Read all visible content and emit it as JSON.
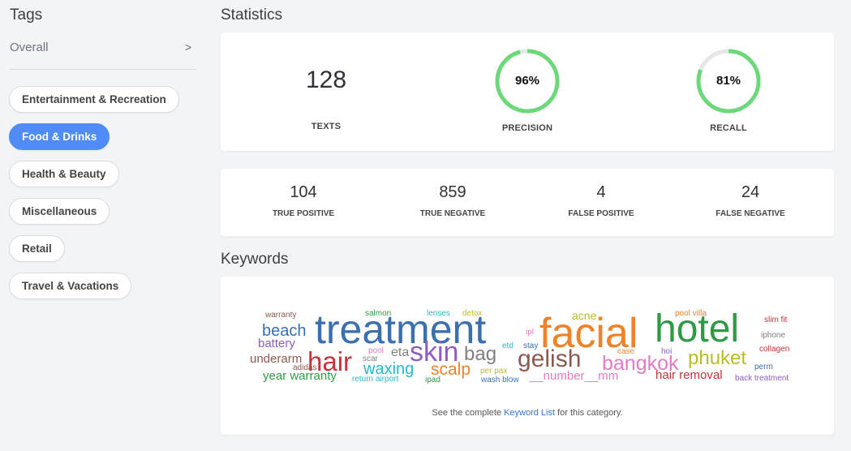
{
  "sidebar": {
    "title": "Tags",
    "overall": "Overall",
    "overall_chevron": ">",
    "tags": [
      "Entertainment & Recreation",
      "Food & Drinks",
      "Health & Beauty",
      "Miscellaneous",
      "Retail",
      "Travel & Vacations"
    ],
    "active_tag": "Food & Drinks",
    "accent_color": "#4f8cf7"
  },
  "statistics": {
    "title": "Statistics",
    "texts": {
      "value": "128",
      "label": "TEXTS"
    },
    "precision": {
      "value": "96%",
      "label": "PRECISION",
      "fraction": 0.96,
      "color": "#6bd87a"
    },
    "recall": {
      "value": "81%",
      "label": "RECALL",
      "fraction": 0.81,
      "color": "#6bd87a"
    }
  },
  "confusion": {
    "true_positive": {
      "value": "104",
      "label": "TRUE POSITIVE"
    },
    "true_negative": {
      "value": "859",
      "label": "TRUE NEGATIVE"
    },
    "false_positive": {
      "value": "4",
      "label": "FALSE POSITIVE"
    },
    "false_negative": {
      "value": "24",
      "label": "FALSE NEGATIVE"
    }
  },
  "keywords": {
    "title": "Keywords",
    "words": [
      {
        "text": "treatment",
        "color": "#3a6fb0"
      },
      {
        "text": "facial",
        "color": "#f0822a"
      },
      {
        "text": "hotel",
        "color": "#2e9a44"
      },
      {
        "text": "hair",
        "color": "#c8323a"
      },
      {
        "text": "skin",
        "color": "#8e5cc3"
      },
      {
        "text": "bag",
        "color": "#808080"
      },
      {
        "text": "gelish",
        "color": "#8b5a4e"
      },
      {
        "text": "bangkok",
        "color": "#e27bc4"
      },
      {
        "text": "phuket",
        "color": "#b8bd2a"
      },
      {
        "text": "beach",
        "color": "#3a6fb0"
      },
      {
        "text": "battery",
        "color": "#8e5cc3"
      },
      {
        "text": "underarm",
        "color": "#8b5a4e"
      },
      {
        "text": "year warranty",
        "color": "#2e9a44"
      },
      {
        "text": "waxing",
        "color": "#2ab7c9"
      },
      {
        "text": "scalp",
        "color": "#f0822a"
      },
      {
        "text": "eta",
        "color": "#808080"
      },
      {
        "text": "__number__mm",
        "color": "#e27bc4"
      },
      {
        "text": "hair removal",
        "color": "#c8323a"
      },
      {
        "text": "acne",
        "color": "#b8bd2a"
      },
      {
        "text": "warranty",
        "color": "#8b5a4e"
      },
      {
        "text": "salmon",
        "color": "#2e9a44"
      },
      {
        "text": "lenses",
        "color": "#2ab7c9"
      },
      {
        "text": "detox",
        "color": "#b8bd2a"
      },
      {
        "text": "pool villa",
        "color": "#f0822a"
      },
      {
        "text": "slim fit",
        "color": "#c8323a"
      },
      {
        "text": "iphone",
        "color": "#808080"
      },
      {
        "text": "collagen",
        "color": "#c8323a"
      },
      {
        "text": "perm",
        "color": "#3a6fb0"
      },
      {
        "text": "back treatment",
        "color": "#8e5cc3"
      },
      {
        "text": "ipl",
        "color": "#e27bc4"
      },
      {
        "text": "etd",
        "color": "#2ab7c9"
      },
      {
        "text": "stay",
        "color": "#3a6fb0"
      },
      {
        "text": "pool",
        "color": "#e27bc4"
      },
      {
        "text": "scar",
        "color": "#808080"
      },
      {
        "text": "adidas",
        "color": "#8b5a4e"
      },
      {
        "text": "return airport",
        "color": "#2ab7c9"
      },
      {
        "text": "ipad",
        "color": "#2e9a44"
      },
      {
        "text": "per pax",
        "color": "#b8bd2a"
      },
      {
        "text": "wash blow",
        "color": "#3a6fb0"
      },
      {
        "text": "case",
        "color": "#f0822a"
      },
      {
        "text": "hoi",
        "color": "#8e5cc3"
      }
    ],
    "footnote_before": "See the complete ",
    "footnote_link": "Keyword List",
    "footnote_after": " for this category."
  }
}
